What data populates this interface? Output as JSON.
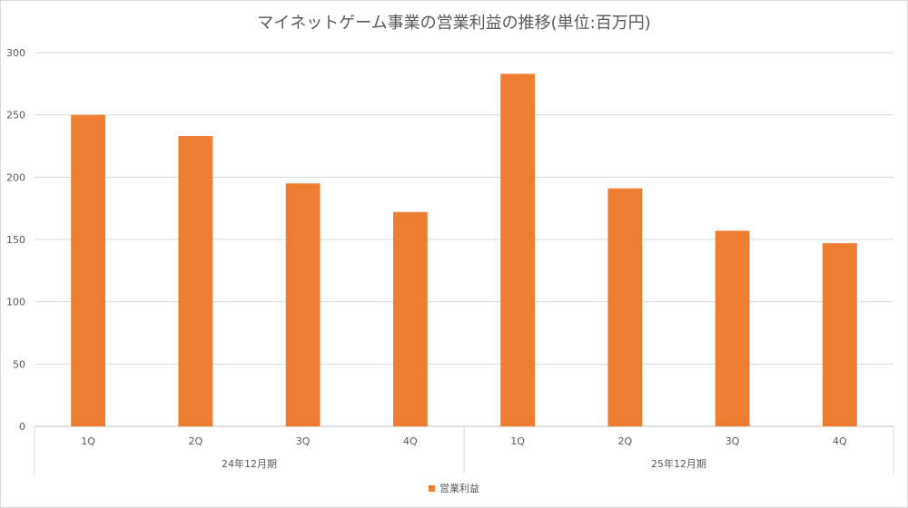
{
  "chart_data": {
    "type": "bar",
    "title": "マイネットゲーム事業の営業利益の推移(単位:百万円)",
    "groups": [
      {
        "label": "24年12月期",
        "categories": [
          "1Q",
          "2Q",
          "3Q",
          "4Q"
        ]
      },
      {
        "label": "25年12月期",
        "categories": [
          "1Q",
          "2Q",
          "3Q",
          "4Q"
        ]
      }
    ],
    "series": [
      {
        "name": "営業利益",
        "color": "#ed7d31",
        "values": [
          250,
          233,
          195,
          172,
          283,
          191,
          157,
          147
        ]
      }
    ],
    "ylim": [
      0,
      300
    ],
    "yticks": [
      0,
      50,
      100,
      150,
      200,
      250,
      300
    ],
    "grid": true,
    "legend_position": "bottom"
  }
}
